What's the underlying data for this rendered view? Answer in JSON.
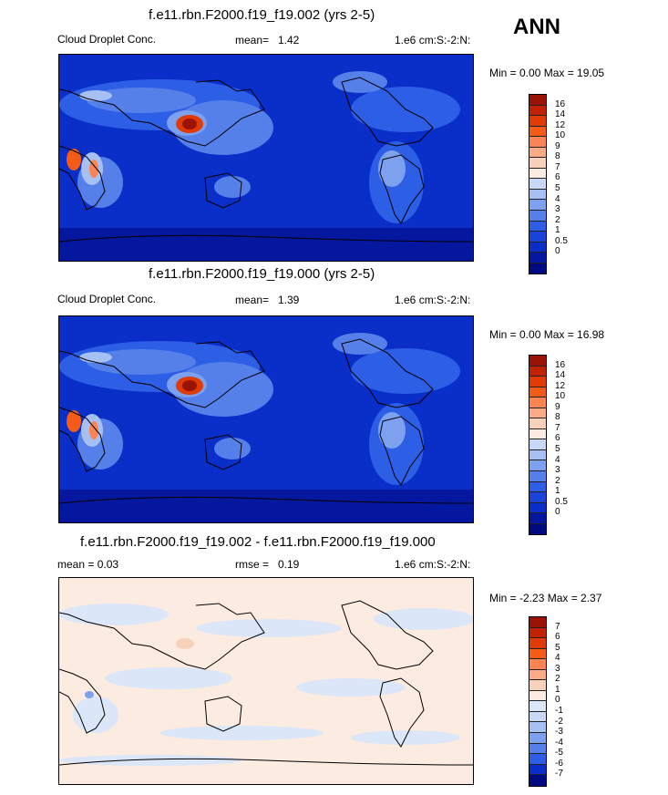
{
  "season": "ANN",
  "panels": [
    {
      "title": "f.e11.rbn.F2000.f19_f19.002 (yrs 2-5)",
      "left_label": "Cloud Droplet Conc.",
      "mid_label": "mean=",
      "mid_value": "1.42",
      "units": "1.e6 cm:S:-2:N:",
      "minmax": "Min =   0.00 Max =  19.05",
      "colors": [
        "#9b1305",
        "#c12204",
        "#e03a05",
        "#f35b17",
        "#fa8453",
        "#fbab85",
        "#f7d1b9",
        "#fcebe0",
        "#c8d8f7",
        "#a7c0f3",
        "#7da1ee",
        "#557fe9",
        "#2c5ee6",
        "#1a44d8",
        "#0a2ec8",
        "#05179f",
        "#000a80"
      ],
      "labels": [
        "16",
        "14",
        "12",
        "10",
        "9",
        "8",
        "7",
        "6",
        "5",
        "4",
        "3",
        "2",
        "1",
        "0.5",
        "0"
      ]
    },
    {
      "title": "f.e11.rbn.F2000.f19_f19.000 (yrs 2-5)",
      "left_label": "Cloud Droplet Conc.",
      "mid_label": "mean=",
      "mid_value": "1.39",
      "units": "1.e6 cm:S:-2:N:",
      "minmax": "Min =   0.00 Max =  16.98",
      "colors": [
        "#9b1305",
        "#c12204",
        "#e03a05",
        "#f35b17",
        "#fa8453",
        "#fbab85",
        "#f7d1b9",
        "#fcebe0",
        "#c8d8f7",
        "#a7c0f3",
        "#7da1ee",
        "#557fe9",
        "#2c5ee6",
        "#1a44d8",
        "#0a2ec8",
        "#05179f",
        "#000a80"
      ],
      "labels": [
        "16",
        "14",
        "12",
        "10",
        "9",
        "8",
        "7",
        "6",
        "5",
        "4",
        "3",
        "2",
        "1",
        "0.5",
        "0"
      ]
    },
    {
      "title": "f.e11.rbn.F2000.f19_f19.002 - f.e11.rbn.F2000.f19_f19.000",
      "left_label": "mean =   0.03",
      "mid_label": "rmse =",
      "mid_value": "0.19",
      "units": "1.e6 cm:S:-2:N:",
      "minmax": "Min =  -2.23 Max =   2.37",
      "colors": [
        "#9b1305",
        "#c12204",
        "#e03a05",
        "#f35b17",
        "#fa8453",
        "#fbab85",
        "#f7d1b9",
        "#fcebe0",
        "#dbe7f8",
        "#c8d8f7",
        "#a7c0f3",
        "#7da1ee",
        "#557fe9",
        "#2c5ee6",
        "#0a2ec8",
        "#000a80"
      ],
      "labels": [
        "7",
        "6",
        "5",
        "4",
        "3",
        "2",
        "1",
        "0",
        "-1",
        "-2",
        "-3",
        "-4",
        "-5",
        "-6",
        "-7"
      ]
    }
  ]
}
